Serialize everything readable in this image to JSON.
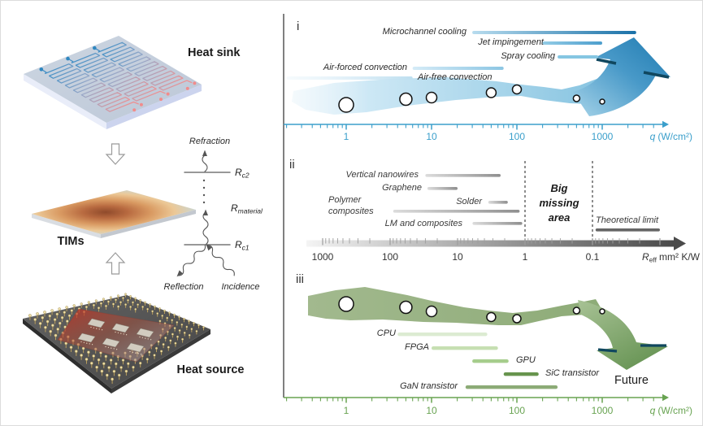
{
  "palette": {
    "blue_axis": "#3b9fcb",
    "green_axis": "#68a351",
    "gray_axis": "#4a4a4a",
    "arrow_brim_teal": "#10475f",
    "band_blue": "#9ccfe8",
    "band_green": "#9cb489"
  },
  "left_diagram": {
    "heat_sink_label": "Heat sink",
    "tims_label": "TIMs",
    "heat_source_label": "Heat source",
    "resistance_network": {
      "refraction_label": "Refraction",
      "reflection_label": "Reflection",
      "incidence_label": "Incidence",
      "rc2": {
        "base": "R",
        "sub": "c2"
      },
      "rmaterial": {
        "base": "R",
        "sub": "material"
      },
      "rc1": {
        "base": "R",
        "sub": "c1"
      }
    }
  },
  "chart_data": [
    {
      "panel_label": "i",
      "type": "bar",
      "subtype": "horizontal-log-range-bars-with-bubble-trend",
      "x_scale": "log",
      "x_unit": "W/cm²",
      "x_ticks": [
        1,
        10,
        100,
        1000
      ],
      "x_tick_labels": [
        "1",
        "10",
        "100",
        "1000"
      ],
      "x_axis_label_parts": {
        "base": "q",
        "rest": "(W/cm²)"
      },
      "series": [
        {
          "name": "Microchannel cooling",
          "range": [
            30,
            2500
          ]
        },
        {
          "name": "Jet impingement",
          "range": [
            200,
            1000
          ]
        },
        {
          "name": "Spray cooling",
          "range": [
            300,
            900
          ]
        },
        {
          "name": "Air-forced convection",
          "range": [
            6,
            70
          ]
        },
        {
          "name": "Air-free convection",
          "range": [
            0.2,
            6
          ]
        }
      ],
      "bubbles_x": [
        1,
        5,
        10,
        50,
        100,
        500,
        1000
      ]
    },
    {
      "panel_label": "ii",
      "type": "bar",
      "subtype": "horizontal-log-range-bars",
      "x_scale": "log-reversed",
      "x_unit": "mm² K/W",
      "x_ticks": [
        1000,
        100,
        10,
        1,
        0.1
      ],
      "x_tick_labels": [
        "1000",
        "100",
        "10",
        "1",
        "0.1"
      ],
      "x_axis_label_parts": {
        "base": "R",
        "sub": "eff",
        "rest": "mm² K/W"
      },
      "series": [
        {
          "name": "Vertical nanowires",
          "range": [
            30,
            2.3
          ]
        },
        {
          "name": "Graphene",
          "range": [
            28,
            10
          ]
        },
        {
          "name": "Polymer composites",
          "name_lines": [
            "Polymer",
            "composites"
          ],
          "range": [
            90,
            1.2
          ]
        },
        {
          "name": "Solder",
          "range": [
            3.5,
            1.8
          ]
        },
        {
          "name": "LM and composites",
          "range": [
            6,
            1.1
          ]
        },
        {
          "name": "Theoretical limit",
          "range": [
            0.09,
            0.01
          ]
        }
      ],
      "annotations": {
        "big_missing_area_lines": [
          "Big",
          "missing",
          "area"
        ],
        "gap_boundaries": [
          1,
          0.1
        ]
      }
    },
    {
      "panel_label": "iii",
      "type": "bar",
      "subtype": "horizontal-log-range-bars-with-bubble-trend",
      "x_scale": "log",
      "x_unit": "W/cm²",
      "x_ticks": [
        1,
        10,
        100,
        1000
      ],
      "x_tick_labels": [
        "1",
        "10",
        "100",
        "1000"
      ],
      "x_axis_label_parts": {
        "base": "q",
        "rest": "(W/cm²)"
      },
      "series": [
        {
          "name": "CPU",
          "range": [
            4,
            45
          ]
        },
        {
          "name": "FPGA",
          "range": [
            10,
            60
          ]
        },
        {
          "name": "GPU",
          "range": [
            30,
            80
          ]
        },
        {
          "name": "SiC transistor",
          "range": [
            70,
            180
          ]
        },
        {
          "name": "GaN transistor",
          "range": [
            25,
            300
          ]
        }
      ],
      "bubbles_x": [
        1,
        5,
        10,
        50,
        100,
        500,
        1000
      ],
      "annotations": {
        "future_label": "Future"
      }
    }
  ]
}
